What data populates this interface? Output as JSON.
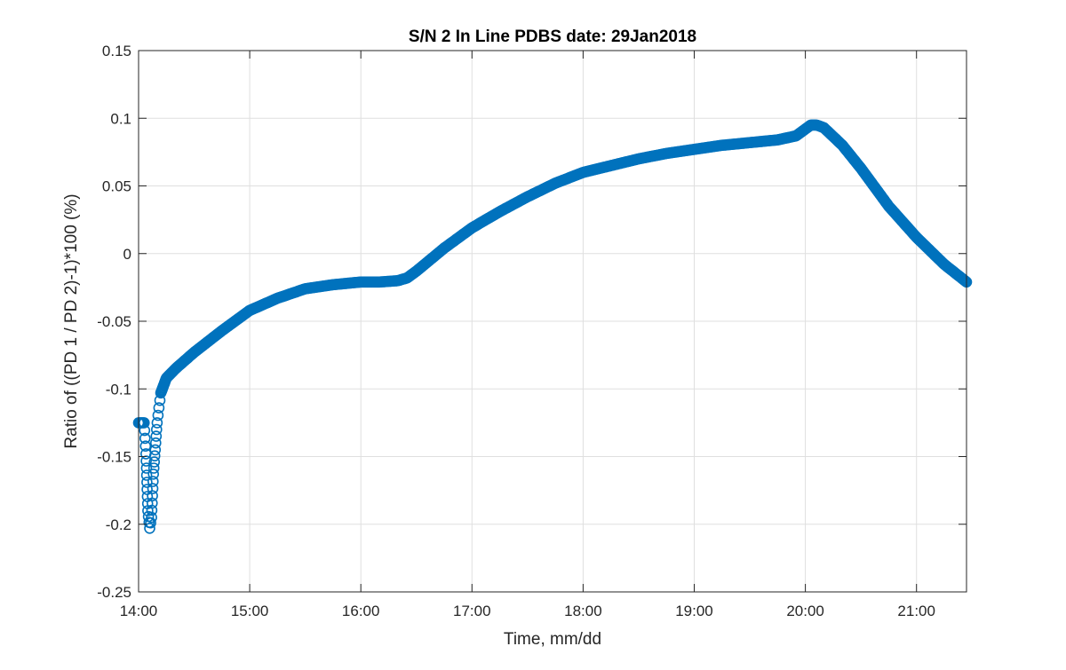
{
  "chart_data": {
    "type": "scatter",
    "title": "S/N 2 In Line PDBS date: 29Jan2018",
    "xlabel": "Time, mm/dd",
    "ylabel": "Ratio of ((PD 1 / PD 2)-1)*100 (%)",
    "x_ticks": [
      "14:00",
      "15:00",
      "16:00",
      "17:00",
      "18:00",
      "19:00",
      "20:00",
      "21:00"
    ],
    "y_ticks": [
      "-0.25",
      "-0.2",
      "-0.15",
      "-0.1",
      "-0.05",
      "0",
      "0.05",
      "0.1",
      "0.15"
    ],
    "xlim": [
      "14:00",
      "21:27"
    ],
    "ylim": [
      -0.25,
      0.15
    ],
    "grid": true,
    "marker": "open circle",
    "color": "#0072BD",
    "series": [
      {
        "x": [
          "14:00",
          "14:03",
          "14:04",
          "14:05",
          "14:06",
          "14:07",
          "14:08",
          "14:09",
          "14:10",
          "14:12",
          "14:15",
          "14:20",
          "14:30",
          "14:45",
          "15:00",
          "15:15",
          "15:30",
          "15:45",
          "16:00",
          "16:10",
          "16:20",
          "16:25",
          "16:30",
          "16:45",
          "17:00",
          "17:15",
          "17:30",
          "17:45",
          "18:00",
          "18:15",
          "18:30",
          "18:45",
          "19:00",
          "19:15",
          "19:30",
          "19:45",
          "19:55",
          "20:00",
          "20:03",
          "20:06",
          "20:10",
          "20:20",
          "20:30",
          "20:45",
          "21:00",
          "21:15",
          "21:27"
        ],
        "y": [
          -0.125,
          -0.125,
          -0.148,
          -0.19,
          -0.203,
          -0.195,
          -0.163,
          -0.145,
          -0.125,
          -0.103,
          -0.092,
          -0.085,
          -0.073,
          -0.057,
          -0.042,
          -0.033,
          -0.026,
          -0.023,
          -0.021,
          -0.021,
          -0.02,
          -0.018,
          -0.013,
          0.004,
          0.019,
          0.031,
          0.042,
          0.052,
          0.06,
          0.065,
          0.07,
          0.074,
          0.077,
          0.08,
          0.082,
          0.084,
          0.087,
          0.092,
          0.095,
          0.095,
          0.093,
          0.08,
          0.063,
          0.035,
          0.012,
          -0.008,
          -0.021
        ]
      }
    ]
  }
}
